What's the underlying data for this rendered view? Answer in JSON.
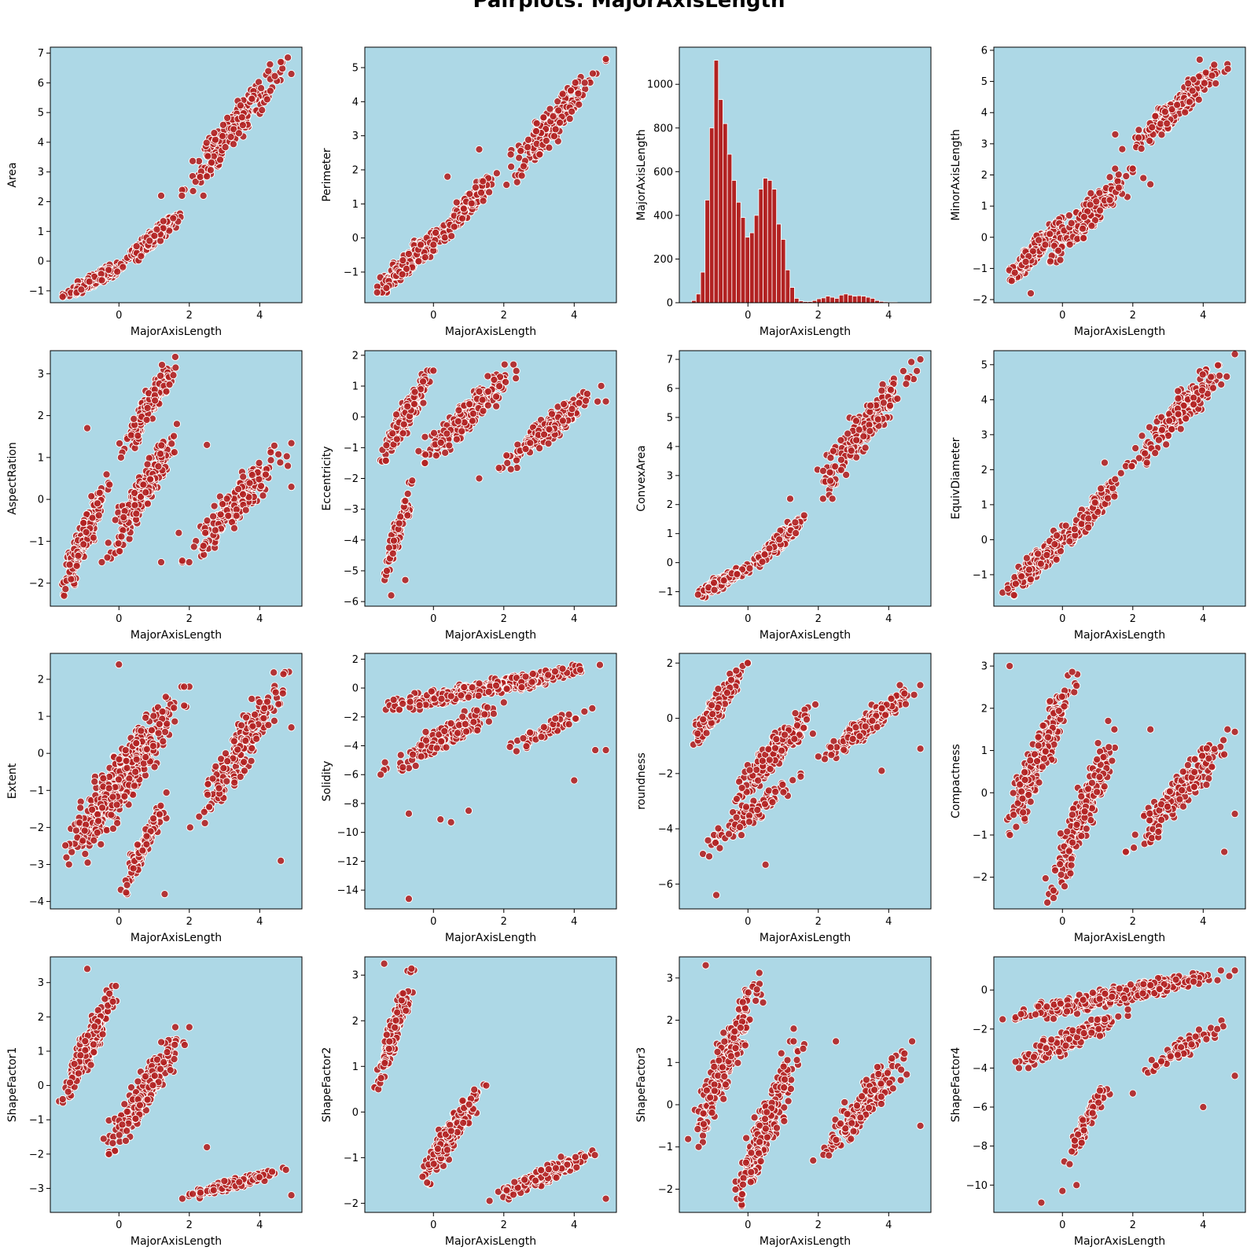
{
  "figure": {
    "title": "Pairplots: MajorAxisLength",
    "bg_color": "#add8e6",
    "marker_color": "#b22222",
    "marker_edge_color": "#ffffff",
    "bar_color": "#b22222"
  },
  "chart_data": [
    {
      "type": "scatter",
      "xlabel": "MajorAxisLength",
      "ylabel": "Area",
      "xlim": [
        -1.95,
        5.2
      ],
      "ylim": [
        -1.4,
        7.2
      ],
      "xticks": [
        0,
        2,
        4
      ],
      "yticks": [
        -1,
        0,
        1,
        2,
        3,
        4,
        5,
        6,
        7
      ],
      "clusters": [
        {
          "x": [
            -1.6,
            0.3
          ],
          "y": [
            -1.2,
            0.0
          ],
          "n": 260
        },
        {
          "x": [
            0.0,
            1.8
          ],
          "y": [
            -0.2,
            1.6
          ],
          "n": 180
        },
        {
          "x": [
            1.7,
            4.9
          ],
          "y": [
            2.2,
            6.9
          ],
          "n": 200
        }
      ],
      "points": [
        [
          -1.6,
          -1.2
        ],
        [
          0.5,
          0.5
        ],
        [
          1.2,
          2.2
        ],
        [
          2.4,
          2.2
        ],
        [
          4.6,
          6.7
        ],
        [
          4.8,
          6.85
        ],
        [
          4.9,
          6.3
        ]
      ]
    },
    {
      "type": "scatter",
      "xlabel": "MajorAxisLength",
      "ylabel": "Perimeter",
      "xlim": [
        -1.95,
        5.2
      ],
      "ylim": [
        -1.9,
        5.6
      ],
      "xticks": [
        0,
        2,
        4
      ],
      "yticks": [
        -1,
        0,
        1,
        2,
        3,
        4,
        5
      ],
      "clusters": [
        {
          "x": [
            -1.7,
            0.5
          ],
          "y": [
            -1.6,
            0.4
          ],
          "n": 260
        },
        {
          "x": [
            0.0,
            1.8
          ],
          "y": [
            -0.2,
            1.9
          ],
          "n": 180
        },
        {
          "x": [
            1.8,
            4.9
          ],
          "y": [
            1.5,
            5.2
          ],
          "n": 200
        }
      ],
      "points": [
        [
          -1.6,
          -1.6
        ],
        [
          0.4,
          1.8
        ],
        [
          1.3,
          2.6
        ],
        [
          4.9,
          5.25
        ]
      ]
    },
    {
      "type": "histogram",
      "xlabel": "MajorAxisLength",
      "ylabel": "MajorAxisLength",
      "xlim": [
        -1.95,
        5.2
      ],
      "ylim": [
        0,
        1170
      ],
      "xticks": [
        0,
        2,
        4
      ],
      "yticks": [
        0,
        200,
        400,
        600,
        800,
        1000
      ],
      "bin_start": -1.6,
      "bin_width": 0.127,
      "counts": [
        10,
        40,
        140,
        470,
        800,
        1110,
        930,
        820,
        680,
        560,
        460,
        390,
        300,
        320,
        400,
        520,
        570,
        560,
        520,
        360,
        290,
        150,
        70,
        20,
        8,
        5,
        5,
        10,
        18,
        22,
        30,
        25,
        20,
        35,
        40,
        35,
        30,
        32,
        30,
        25,
        20,
        10,
        6,
        4,
        3,
        3
      ]
    },
    {
      "type": "scatter",
      "xlabel": "MajorAxisLength",
      "ylabel": "MinorAxisLength",
      "xlim": [
        -1.95,
        5.2
      ],
      "ylim": [
        -2.1,
        6.1
      ],
      "xticks": [
        0,
        2,
        4
      ],
      "yticks": [
        -2,
        -1,
        0,
        1,
        2,
        3,
        4,
        5,
        6
      ],
      "clusters": [
        {
          "x": [
            -1.7,
            0.2
          ],
          "y": [
            -1.5,
            0.7
          ],
          "n": 250
        },
        {
          "x": [
            -0.5,
            2.0
          ],
          "y": [
            -0.8,
            2.2
          ],
          "n": 220
        },
        {
          "x": [
            1.7,
            4.8
          ],
          "y": [
            2.7,
            5.7
          ],
          "n": 200
        }
      ],
      "points": [
        [
          -0.9,
          -1.8
        ],
        [
          1.5,
          3.3
        ],
        [
          2.3,
          1.9
        ],
        [
          2.5,
          1.7
        ],
        [
          3.9,
          5.7
        ],
        [
          4.7,
          5.4
        ]
      ]
    },
    {
      "type": "scatter",
      "xlabel": "MajorAxisLength",
      "ylabel": "AspectRation",
      "xlim": [
        -1.95,
        5.2
      ],
      "ylim": [
        -2.55,
        3.55
      ],
      "xticks": [
        0,
        2,
        4
      ],
      "yticks": [
        -2,
        -1,
        0,
        1,
        2,
        3
      ],
      "clusters": [
        {
          "x": [
            -1.7,
            -0.2
          ],
          "y": [
            -2.3,
            0.7
          ],
          "n": 220
        },
        {
          "x": [
            0.0,
            1.7
          ],
          "y": [
            1.0,
            3.4
          ],
          "n": 180
        },
        {
          "x": [
            -0.5,
            1.8
          ],
          "y": [
            -1.5,
            1.8
          ],
          "n": 200
        },
        {
          "x": [
            1.8,
            4.9
          ],
          "y": [
            -1.5,
            1.4
          ],
          "n": 200
        }
      ],
      "points": [
        [
          -0.9,
          1.7
        ],
        [
          1.2,
          -1.5
        ],
        [
          1.7,
          -0.8
        ],
        [
          4.8,
          0.8
        ],
        [
          4.9,
          0.3
        ],
        [
          2.5,
          1.3
        ]
      ]
    },
    {
      "type": "scatter",
      "xlabel": "MajorAxisLength",
      "ylabel": "Eccentricity",
      "xlim": [
        -1.95,
        5.2
      ],
      "ylim": [
        -6.15,
        2.15
      ],
      "xticks": [
        0,
        2,
        4
      ],
      "yticks": [
        -6,
        -5,
        -4,
        -3,
        -2,
        -1,
        0,
        1,
        2
      ],
      "clusters": [
        {
          "x": [
            -1.6,
            0.0
          ],
          "y": [
            -1.5,
            1.5
          ],
          "n": 220
        },
        {
          "x": [
            -0.5,
            2.5
          ],
          "y": [
            -1.5,
            1.7
          ],
          "n": 240
        },
        {
          "x": [
            1.8,
            4.9
          ],
          "y": [
            -1.7,
            1.1
          ],
          "n": 200
        },
        {
          "x": [
            -1.5,
            -0.5
          ],
          "y": [
            -5.3,
            -2.0
          ],
          "n": 80
        }
      ],
      "points": [
        [
          -1.2,
          -5.8
        ],
        [
          -0.8,
          -5.3
        ],
        [
          1.3,
          -2.0
        ],
        [
          2.1,
          -1.5
        ],
        [
          2.2,
          -1.7
        ],
        [
          4.9,
          0.5
        ]
      ]
    },
    {
      "type": "scatter",
      "xlabel": "MajorAxisLength",
      "ylabel": "ConvexArea",
      "xlim": [
        -1.95,
        5.2
      ],
      "ylim": [
        -1.5,
        7.3
      ],
      "xticks": [
        0,
        2,
        4
      ],
      "yticks": [
        -1,
        0,
        1,
        2,
        3,
        4,
        5,
        6,
        7
      ],
      "clusters": [
        {
          "x": [
            -1.6,
            0.3
          ],
          "y": [
            -1.2,
            0.0
          ],
          "n": 260
        },
        {
          "x": [
            0.0,
            1.8
          ],
          "y": [
            -0.2,
            1.7
          ],
          "n": 180
        },
        {
          "x": [
            1.7,
            4.9
          ],
          "y": [
            2.2,
            7.0
          ],
          "n": 200
        }
      ],
      "points": [
        [
          1.2,
          2.2
        ],
        [
          2.4,
          2.2
        ],
        [
          4.9,
          7.0
        ],
        [
          4.8,
          6.6
        ]
      ]
    },
    {
      "type": "scatter",
      "xlabel": "MajorAxisLength",
      "ylabel": "EquivDiameter",
      "xlim": [
        -1.95,
        5.2
      ],
      "ylim": [
        -1.9,
        5.4
      ],
      "xticks": [
        0,
        2,
        4
      ],
      "yticks": [
        -1,
        0,
        1,
        2,
        3,
        4,
        5
      ],
      "clusters": [
        {
          "x": [
            -1.7,
            0.4
          ],
          "y": [
            -1.6,
            0.4
          ],
          "n": 260
        },
        {
          "x": [
            0.0,
            1.8
          ],
          "y": [
            -0.2,
            1.9
          ],
          "n": 180
        },
        {
          "x": [
            1.8,
            4.9
          ],
          "y": [
            2.1,
            5.3
          ],
          "n": 200
        }
      ],
      "points": [
        [
          1.2,
          2.2
        ],
        [
          2.4,
          2.2
        ],
        [
          4.9,
          5.3
        ]
      ]
    },
    {
      "type": "scatter",
      "xlabel": "MajorAxisLength",
      "ylabel": "Extent",
      "xlim": [
        -1.95,
        5.2
      ],
      "ylim": [
        -4.2,
        2.7
      ],
      "xticks": [
        0,
        2,
        4
      ],
      "yticks": [
        -4,
        -3,
        -2,
        -1,
        0,
        1,
        2
      ],
      "clusters": [
        {
          "x": [
            -1.7,
            2.0
          ],
          "y": [
            -3.0,
            1.8
          ],
          "n": 500
        },
        {
          "x": [
            0.0,
            1.5
          ],
          "y": [
            -3.8,
            -1.0
          ],
          "n": 120
        },
        {
          "x": [
            2.0,
            4.9
          ],
          "y": [
            -2.0,
            2.2
          ],
          "n": 220
        }
      ],
      "points": [
        [
          0.0,
          2.4
        ],
        [
          4.6,
          -2.9
        ],
        [
          4.9,
          0.7
        ],
        [
          1.3,
          -3.8
        ]
      ]
    },
    {
      "type": "scatter",
      "xlabel": "MajorAxisLength",
      "ylabel": "Solidity",
      "xlim": [
        -1.95,
        5.2
      ],
      "ylim": [
        -15.3,
        2.4
      ],
      "xticks": [
        0,
        2,
        4
      ],
      "yticks": [
        -14,
        -12,
        -10,
        -8,
        -6,
        -4,
        -2,
        0,
        2
      ],
      "clusters": [
        {
          "x": [
            -1.7,
            4.9
          ],
          "y": [
            -1.5,
            1.6
          ],
          "n": 500
        },
        {
          "x": [
            -1.5,
            2.0
          ],
          "y": [
            -6.0,
            -1.0
          ],
          "n": 200
        },
        {
          "x": [
            1.5,
            4.8
          ],
          "y": [
            -5.0,
            -1.0
          ],
          "n": 60
        }
      ],
      "points": [
        [
          -0.7,
          -14.6
        ],
        [
          0.2,
          -9.1
        ],
        [
          0.5,
          -9.3
        ],
        [
          -0.7,
          -8.7
        ],
        [
          1.0,
          -8.5
        ],
        [
          4.0,
          -6.4
        ],
        [
          4.9,
          -4.3
        ],
        [
          4.6,
          -4.3
        ]
      ]
    },
    {
      "type": "scatter",
      "xlabel": "MajorAxisLength",
      "ylabel": "roundness",
      "xlim": [
        -1.95,
        5.2
      ],
      "ylim": [
        -6.9,
        2.35
      ],
      "xticks": [
        0,
        2,
        4
      ],
      "yticks": [
        -6,
        -4,
        -2,
        0,
        2
      ],
      "clusters": [
        {
          "x": [
            -1.7,
            0.0
          ],
          "y": [
            -1.0,
            2.0
          ],
          "n": 220
        },
        {
          "x": [
            -0.5,
            2.0
          ],
          "y": [
            -3.0,
            0.5
          ],
          "n": 250
        },
        {
          "x": [
            -1.5,
            1.5
          ],
          "y": [
            -5.0,
            -2.0
          ],
          "n": 100
        },
        {
          "x": [
            2.0,
            4.9
          ],
          "y": [
            -1.5,
            1.2
          ],
          "n": 200
        }
      ],
      "points": [
        [
          -0.9,
          -6.4
        ],
        [
          -0.8,
          -4.7
        ],
        [
          0.5,
          -5.3
        ],
        [
          3.8,
          -1.9
        ],
        [
          4.9,
          -1.1
        ]
      ]
    },
    {
      "type": "scatter",
      "xlabel": "MajorAxisLength",
      "ylabel": "Compactness",
      "xlim": [
        -1.95,
        5.2
      ],
      "ylim": [
        -2.75,
        3.3
      ],
      "xticks": [
        0,
        2,
        4
      ],
      "yticks": [
        -2,
        -1,
        0,
        1,
        2,
        3
      ],
      "clusters": [
        {
          "x": [
            -1.7,
            0.5
          ],
          "y": [
            -1.0,
            3.0
          ],
          "n": 250
        },
        {
          "x": [
            -0.5,
            1.6
          ],
          "y": [
            -2.6,
            1.5
          ],
          "n": 250
        },
        {
          "x": [
            1.8,
            4.9
          ],
          "y": [
            -1.4,
            1.5
          ],
          "n": 200
        }
      ],
      "points": [
        [
          -1.5,
          3.0
        ],
        [
          1.3,
          1.7
        ],
        [
          2.5,
          1.5
        ],
        [
          4.9,
          -0.5
        ],
        [
          4.6,
          -1.4
        ]
      ]
    },
    {
      "type": "scatter",
      "xlabel": "MajorAxisLength",
      "ylabel": "ShapeFactor1",
      "xlim": [
        -1.95,
        5.2
      ],
      "ylim": [
        -3.7,
        3.75
      ],
      "xticks": [
        0,
        2,
        4
      ],
      "yticks": [
        -3,
        -2,
        -1,
        0,
        1,
        2,
        3
      ],
      "clusters": [
        {
          "x": [
            -1.7,
            0.0
          ],
          "y": [
            -0.5,
            2.9
          ],
          "n": 250
        },
        {
          "x": [
            -0.5,
            2.0
          ],
          "y": [
            -2.0,
            1.7
          ],
          "n": 250
        },
        {
          "x": [
            1.7,
            4.9
          ],
          "y": [
            -3.3,
            -2.4
          ],
          "n": 200
        }
      ],
      "points": [
        [
          -0.9,
          3.4
        ],
        [
          2.5,
          -1.8
        ],
        [
          4.9,
          -3.2
        ]
      ]
    },
    {
      "type": "scatter",
      "xlabel": "MajorAxisLength",
      "ylabel": "ShapeFactor2",
      "xlim": [
        -1.95,
        5.2
      ],
      "ylim": [
        -2.2,
        3.4
      ],
      "xticks": [
        0,
        2,
        4
      ],
      "yticks": [
        -2,
        -1,
        0,
        1,
        2,
        3
      ],
      "clusters": [
        {
          "x": [
            -1.7,
            -0.5
          ],
          "y": [
            0.5,
            3.2
          ],
          "n": 180
        },
        {
          "x": [
            -0.5,
            1.5
          ],
          "y": [
            -1.6,
            0.6
          ],
          "n": 250
        },
        {
          "x": [
            1.5,
            4.9
          ],
          "y": [
            -1.95,
            -0.8
          ],
          "n": 200
        }
      ],
      "points": [
        [
          -1.4,
          3.25
        ],
        [
          4.9,
          -1.9
        ]
      ]
    },
    {
      "type": "scatter",
      "xlabel": "MajorAxisLength",
      "ylabel": "ShapeFactor3",
      "xlim": [
        -1.95,
        5.2
      ],
      "ylim": [
        -2.55,
        3.5
      ],
      "xticks": [
        0,
        2,
        4
      ],
      "yticks": [
        -2,
        -1,
        0,
        1,
        2,
        3
      ],
      "clusters": [
        {
          "x": [
            -1.7,
            0.5
          ],
          "y": [
            -1.0,
            3.2
          ],
          "n": 250
        },
        {
          "x": [
            -0.5,
            1.6
          ],
          "y": [
            -2.4,
            1.5
          ],
          "n": 250
        },
        {
          "x": [
            1.8,
            4.9
          ],
          "y": [
            -1.4,
            1.5
          ],
          "n": 200
        }
      ],
      "points": [
        [
          -1.2,
          3.3
        ],
        [
          1.3,
          1.8
        ],
        [
          2.5,
          1.5
        ],
        [
          4.9,
          -0.5
        ]
      ]
    },
    {
      "type": "scatter",
      "xlabel": "MajorAxisLength",
      "ylabel": "ShapeFactor4",
      "xlim": [
        -1.95,
        5.2
      ],
      "ylim": [
        -11.4,
        1.7
      ],
      "xticks": [
        0,
        2,
        4
      ],
      "yticks": [
        -10,
        -8,
        -6,
        -4,
        -2,
        0
      ],
      "clusters": [
        {
          "x": [
            -1.7,
            4.9
          ],
          "y": [
            -1.5,
            1.0
          ],
          "n": 450
        },
        {
          "x": [
            -1.5,
            2.0
          ],
          "y": [
            -4.0,
            -1.0
          ],
          "n": 200
        },
        {
          "x": [
            0.0,
            1.5
          ],
          "y": [
            -9.0,
            -4.0
          ],
          "n": 80
        },
        {
          "x": [
            2.0,
            4.8
          ],
          "y": [
            -4.5,
            -1.5
          ],
          "n": 80
        }
      ],
      "points": [
        [
          -0.6,
          -10.9
        ],
        [
          0.0,
          -10.3
        ],
        [
          0.4,
          -10.0
        ],
        [
          4.0,
          -6.0
        ],
        [
          2.0,
          -5.3
        ],
        [
          4.9,
          -4.4
        ]
      ]
    }
  ]
}
